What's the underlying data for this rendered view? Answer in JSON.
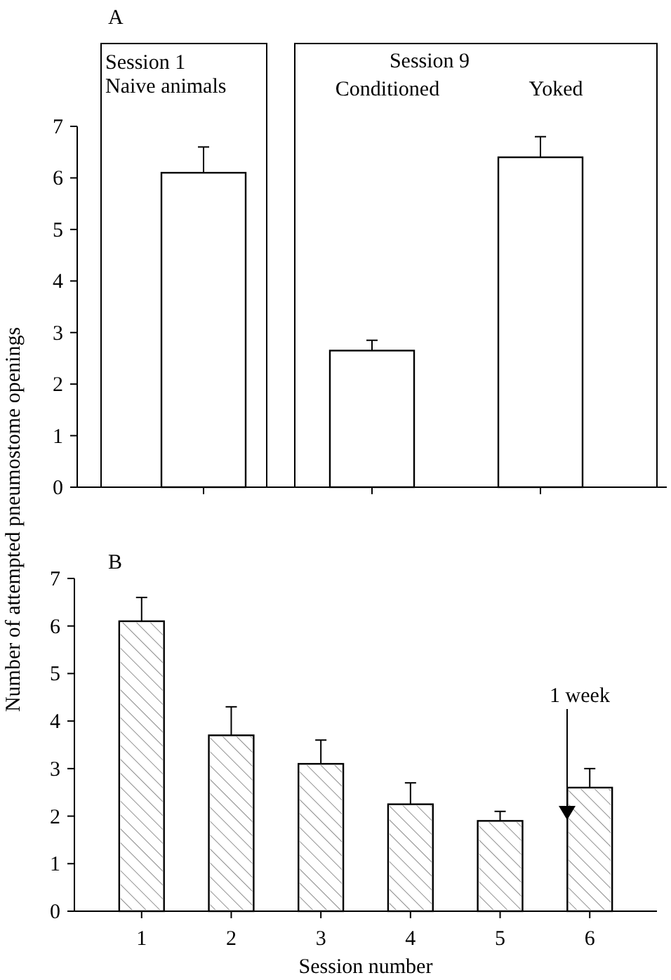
{
  "chart_data": [
    {
      "type": "bar",
      "title": "A",
      "ylabel": "Number of attempted pneumostome openings",
      "categories": [
        null,
        null,
        null
      ],
      "values": [
        6.1,
        2.65,
        6.4
      ],
      "errors": [
        0.5,
        0.2,
        0.4
      ],
      "color": "#ffffff",
      "ylim": [
        0,
        7
      ],
      "yticks": [
        0,
        1,
        2,
        3,
        4,
        5,
        6,
        7
      ],
      "grid": false,
      "legend": false,
      "annotations": [
        "Session 1",
        "Naive animals",
        "Session 9",
        "Conditioned",
        "Yoked"
      ]
    },
    {
      "type": "bar",
      "title": "B",
      "xlabel": "Session number",
      "categories": [
        "1",
        "2",
        "3",
        "4",
        "5",
        "6"
      ],
      "values": [
        6.1,
        3.7,
        3.1,
        2.25,
        1.9,
        2.6
      ],
      "errors": [
        0.5,
        0.6,
        0.5,
        0.45,
        0.2,
        0.4
      ],
      "color": "#ffffff",
      "ylim": [
        0,
        7
      ],
      "yticks": [
        0,
        1,
        2,
        3,
        4,
        5,
        6,
        7
      ],
      "grid": false,
      "legend": false,
      "annotations": [
        "1 week"
      ]
    }
  ]
}
